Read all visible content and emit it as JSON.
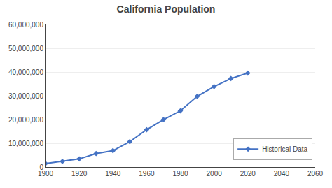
{
  "chart_data": {
    "type": "line",
    "title": "California Population",
    "x": [
      1900,
      1910,
      1920,
      1930,
      1940,
      1950,
      1960,
      1970,
      1980,
      1990,
      2000,
      2010,
      2020
    ],
    "series": [
      {
        "name": "Historical Data",
        "color": "#4472C4",
        "marker": "diamond",
        "values": [
          1485053,
          2377549,
          3426861,
          5677251,
          6907387,
          10677247,
          15717204,
          19971069,
          23667902,
          29760021,
          33871648,
          37253956,
          39538223
        ]
      }
    ],
    "xlim": [
      1900,
      2060
    ],
    "ylim": [
      0,
      60000000
    ],
    "xticks": [
      1900,
      1920,
      1940,
      1960,
      1980,
      2000,
      2020,
      2040,
      2060
    ],
    "yticks": [
      0,
      {
        "value": 10000000,
        "label": "10,000,000"
      },
      {
        "value": 20000000,
        "label": "20,000,000"
      },
      {
        "value": 30000000,
        "label": "30,000,000"
      },
      {
        "value": 40000000,
        "label": "40,000,000"
      },
      {
        "value": 50000000,
        "label": "50,000,000"
      },
      {
        "value": 60000000,
        "label": "60,000,000"
      }
    ],
    "grid": true,
    "legend": "lower right"
  }
}
